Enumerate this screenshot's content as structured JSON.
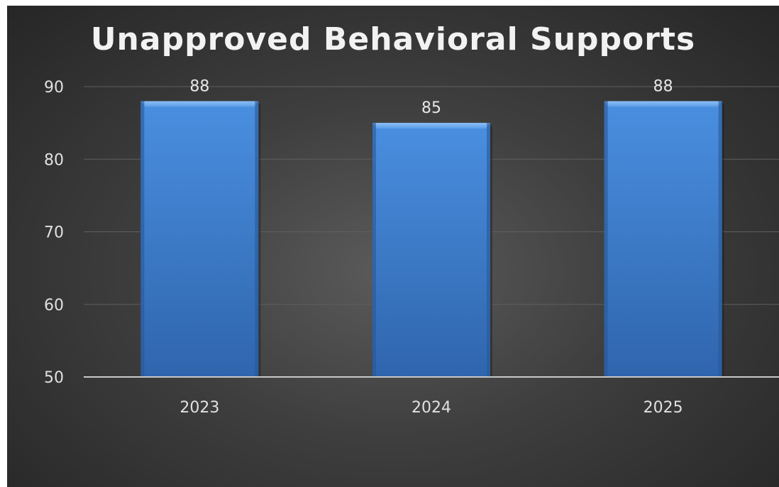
{
  "chart_data": {
    "type": "bar",
    "title": "Unapproved Behavioral Supports",
    "categories": [
      "2023",
      "2024",
      "2025"
    ],
    "values": [
      88,
      85,
      88
    ],
    "data_labels": [
      "88",
      "85",
      "88"
    ],
    "xlabel": "",
    "ylabel": "",
    "ylim": [
      50,
      90
    ],
    "yticks": [
      "50",
      "60",
      "70",
      "80",
      "90"
    ],
    "grid": true,
    "legend": "none",
    "colors": {
      "bar": "#3f7fd1",
      "bar_light": "#5a9ce8",
      "bar_dark": "#2d62a8",
      "background": "#3a3a3a"
    }
  }
}
